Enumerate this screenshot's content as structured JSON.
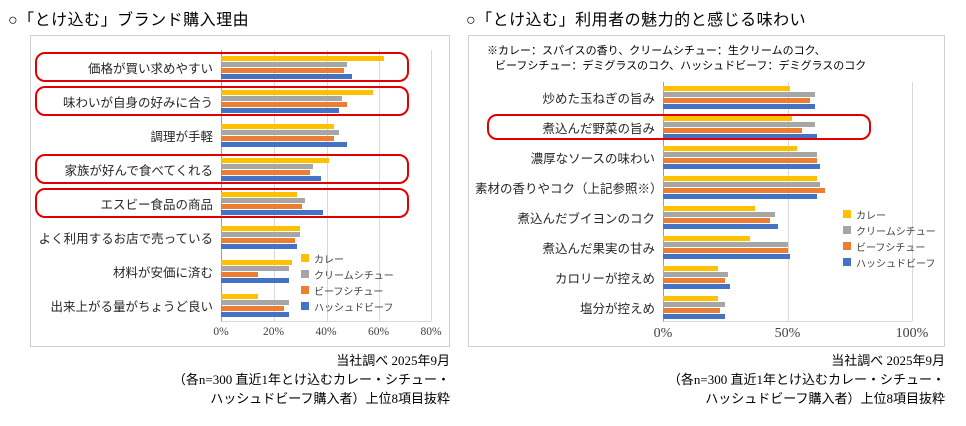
{
  "colors": {
    "curry": "#FFC000",
    "cream_stew": "#A6A6A6",
    "beef_stew": "#ED7D31",
    "hashed_beef": "#4472C4",
    "highlight_ring": "#E00000",
    "gridline": "#D9D9D9",
    "axis_line": "#9F9F9F"
  },
  "chart_data": [
    {
      "id": "purchase-reasons",
      "type": "bar",
      "orientation": "horizontal",
      "title": "○「とけ込む」ブランド購入理由",
      "categories": [
        "価格が買い求めやすい",
        "味わいが自身の好みに合う",
        "調理が手軽",
        "家族が好んで食べてくれる",
        "エスビー食品の商品",
        "よく利用するお店で売っている",
        "材料が安価に済む",
        "出来上がる量がちょうど良い"
      ],
      "series": [
        {
          "name": "カレー",
          "color_key": "curry",
          "values": [
            62,
            58,
            43,
            41,
            29,
            30,
            27,
            14
          ]
        },
        {
          "name": "クリームシチュー",
          "color_key": "cream_stew",
          "values": [
            48,
            46,
            45,
            35,
            32,
            30,
            26,
            26
          ]
        },
        {
          "name": "ビーフシチュー",
          "color_key": "beef_stew",
          "values": [
            47,
            48,
            43,
            34,
            31,
            28,
            14,
            24
          ]
        },
        {
          "name": "ハッシュドビーフ",
          "color_key": "hashed_beef",
          "values": [
            50,
            45,
            48,
            38,
            39,
            29,
            26,
            26
          ]
        }
      ],
      "highlighted_categories": [
        0,
        1,
        3,
        4
      ],
      "xlim": [
        0,
        80
      ],
      "x_ticks": [
        "0%",
        "20%",
        "40%",
        "60%",
        "80%"
      ],
      "grid": true,
      "legend_position": "inside-lower-right",
      "caption": [
        "当社調べ 2025年9月",
        "（各n=300 直近1年とけ込むカレー・シチュー・",
        "ハッシュドビーフ購入者）上位8項目抜粋"
      ]
    },
    {
      "id": "attractive-flavors",
      "type": "bar",
      "orientation": "horizontal",
      "title": "○「とけ込む」利用者の魅力的と感じる味わい",
      "note_lines": [
        "※カレー：スパイスの香り、クリームシチュー：生クリームのコク、",
        "ビーフシチュー：デミグラスのコク、ハッシュドビーフ：デミグラスのコク"
      ],
      "categories": [
        "炒めた玉ねぎの旨み",
        "煮込んだ野菜の旨み",
        "濃厚なソースの味わい",
        "素材の香りやコク（上記参照※）",
        "煮込んだブイヨンのコク",
        "煮込んだ果実の甘み",
        "カロリーが控えめ",
        "塩分が控えめ"
      ],
      "series": [
        {
          "name": "カレー",
          "color_key": "curry",
          "values": [
            51,
            52,
            54,
            62,
            37,
            35,
            22,
            22
          ]
        },
        {
          "name": "クリームシチュー",
          "color_key": "cream_stew",
          "values": [
            61,
            61,
            62,
            63,
            45,
            50,
            26,
            25
          ]
        },
        {
          "name": "ビーフシチュー",
          "color_key": "beef_stew",
          "values": [
            59,
            56,
            62,
            65,
            43,
            50,
            25,
            23
          ]
        },
        {
          "name": "ハッシュドビーフ",
          "color_key": "hashed_beef",
          "values": [
            61,
            62,
            63,
            62,
            46,
            51,
            27,
            25
          ]
        }
      ],
      "highlighted_categories": [
        1
      ],
      "xlim": [
        0,
        100
      ],
      "x_ticks": [
        "0%",
        "50%",
        "100%"
      ],
      "grid": true,
      "legend_position": "right-overlay",
      "caption": [
        "当社調べ 2025年9月",
        "（各n=300 直近1年とけ込むカレー・シチュー・",
        "ハッシュドビーフ購入者）上位8項目抜粋"
      ]
    }
  ]
}
